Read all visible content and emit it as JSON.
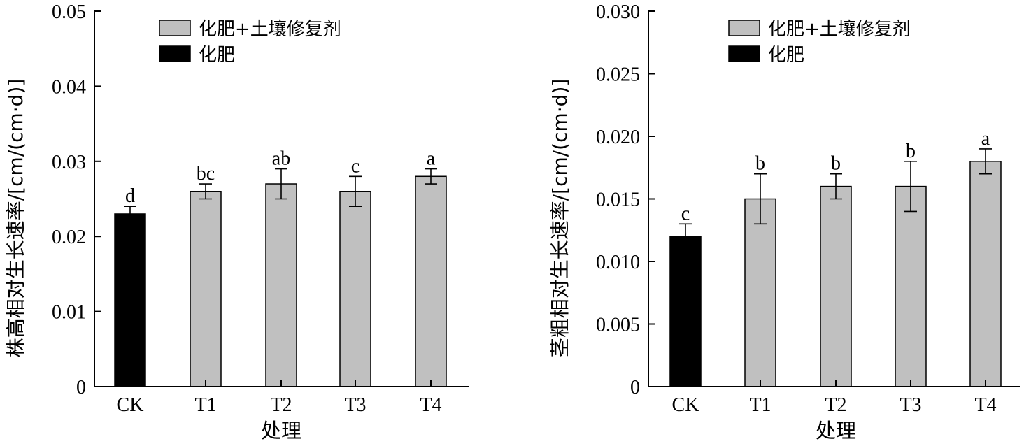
{
  "chart_data": [
    {
      "type": "bar",
      "ylabel": "株高相对生长速率/[cm/(cm·d)]",
      "xlabel": "处理",
      "categories": [
        "CK",
        "T1",
        "T2",
        "T3",
        "T4"
      ],
      "values": [
        0.023,
        0.026,
        0.027,
        0.026,
        0.028
      ],
      "errors": [
        0.001,
        0.001,
        0.002,
        0.002,
        0.001
      ],
      "significance": [
        "d",
        "bc",
        "ab",
        "c",
        "a"
      ],
      "bar_group": [
        "化肥",
        "化肥+土壤修复剂",
        "化肥+土壤修复剂",
        "化肥+土壤修复剂",
        "化肥+土壤修复剂"
      ],
      "ylim": [
        0,
        0.05
      ],
      "yticks": [
        "0",
        "0.01",
        "0.02",
        "0.03",
        "0.04",
        "0.05"
      ],
      "legend": [
        {
          "label": "化肥+土壤修复剂",
          "color": "#c0c0c0"
        },
        {
          "label": "化肥",
          "color": "#000000"
        }
      ],
      "legend_position": "top-center",
      "grid": false
    },
    {
      "type": "bar",
      "ylabel": "茎粗相对生长速率/[cm/(cm·d)]",
      "xlabel": "处理",
      "categories": [
        "CK",
        "T1",
        "T2",
        "T3",
        "T4"
      ],
      "values": [
        0.012,
        0.015,
        0.016,
        0.016,
        0.018
      ],
      "errors": [
        0.001,
        0.002,
        0.001,
        0.002,
        0.001
      ],
      "significance": [
        "c",
        "b",
        "b",
        "b",
        "a"
      ],
      "bar_group": [
        "化肥",
        "化肥+土壤修复剂",
        "化肥+土壤修复剂",
        "化肥+土壤修复剂",
        "化肥+土壤修复剂"
      ],
      "ylim": [
        0,
        0.03
      ],
      "yticks": [
        "0",
        "0.005",
        "0.010",
        "0.015",
        "0.020",
        "0.025",
        "0.030"
      ],
      "legend": [
        {
          "label": "化肥+土壤修复剂",
          "color": "#c0c0c0"
        },
        {
          "label": "化肥",
          "color": "#000000"
        }
      ],
      "legend_position": "top-center",
      "grid": false
    }
  ]
}
